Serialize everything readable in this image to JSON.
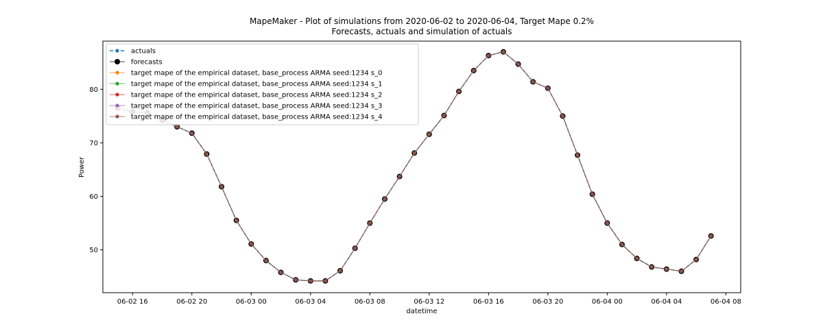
{
  "chart_data": {
    "type": "line",
    "title": "MapeMaker - Plot of simulations from 2020-06-02 to 2020-06-04, Target Mape 0.2%",
    "subtitle": "Forecasts, actuals and simulation of actuals",
    "xlabel": "datetime",
    "ylabel": "Power",
    "xlim": [
      "2020-06-02 14:00",
      "2020-06-04 09:00"
    ],
    "ylim": [
      42,
      89
    ],
    "x_tick_labels": [
      "06-02 16",
      "06-02 20",
      "06-03 00",
      "06-03 04",
      "06-03 08",
      "06-03 12",
      "06-03 16",
      "06-03 20",
      "06-04 00",
      "06-04 04",
      "06-04 08"
    ],
    "x_ticks": [
      "2020-06-02 16:00",
      "2020-06-02 20:00",
      "2020-06-03 00:00",
      "2020-06-03 04:00",
      "2020-06-03 08:00",
      "2020-06-03 12:00",
      "2020-06-03 16:00",
      "2020-06-03 20:00",
      "2020-06-04 00:00",
      "2020-06-04 04:00",
      "2020-06-04 08:00"
    ],
    "y_ticks": [
      50,
      60,
      70,
      80
    ],
    "grid": false,
    "legend_position": "upper-left",
    "x": [
      "2020-06-02 15:00",
      "2020-06-02 16:00",
      "2020-06-02 17:00",
      "2020-06-02 18:00",
      "2020-06-02 19:00",
      "2020-06-02 20:00",
      "2020-06-02 21:00",
      "2020-06-02 22:00",
      "2020-06-02 23:00",
      "2020-06-03 00:00",
      "2020-06-03 01:00",
      "2020-06-03 02:00",
      "2020-06-03 03:00",
      "2020-06-03 04:00",
      "2020-06-03 05:00",
      "2020-06-03 06:00",
      "2020-06-03 07:00",
      "2020-06-03 08:00",
      "2020-06-03 09:00",
      "2020-06-03 10:00",
      "2020-06-03 11:00",
      "2020-06-03 12:00",
      "2020-06-03 13:00",
      "2020-06-03 14:00",
      "2020-06-03 15:00",
      "2020-06-03 16:00",
      "2020-06-03 17:00",
      "2020-06-03 18:00",
      "2020-06-03 19:00",
      "2020-06-03 20:00",
      "2020-06-03 21:00",
      "2020-06-03 22:00",
      "2020-06-03 23:00",
      "2020-06-04 00:00",
      "2020-06-04 01:00",
      "2020-06-04 02:00",
      "2020-06-04 03:00",
      "2020-06-04 04:00",
      "2020-06-04 05:00",
      "2020-06-04 06:00",
      "2020-06-04 07:00"
    ],
    "series": [
      {
        "name": "actuals",
        "color": "#1f77b4",
        "style": "dashed",
        "marker": "small",
        "values": [
          76.5,
          75.8,
          75.6,
          74.2,
          73.0,
          71.8,
          67.9,
          61.8,
          55.5,
          51.1,
          48.0,
          45.8,
          44.4,
          44.2,
          44.2,
          46.1,
          50.3,
          55.0,
          59.5,
          63.7,
          68.1,
          71.6,
          75.1,
          79.6,
          83.5,
          86.3,
          87.0,
          84.7,
          81.4,
          80.2,
          75.0,
          67.7,
          60.4,
          55.0,
          51.0,
          48.4,
          46.8,
          46.4,
          46.0,
          48.2,
          52.6
        ]
      },
      {
        "name": "forecasts",
        "color": "#000000",
        "style": "solid",
        "marker": "large",
        "values": [
          76.5,
          75.8,
          75.6,
          74.2,
          73.0,
          71.8,
          67.9,
          61.8,
          55.5,
          51.1,
          48.0,
          45.8,
          44.4,
          44.2,
          44.2,
          46.1,
          50.3,
          55.0,
          59.5,
          63.7,
          68.1,
          71.6,
          75.1,
          79.6,
          83.5,
          86.3,
          87.0,
          84.7,
          81.4,
          80.2,
          75.0,
          67.7,
          60.4,
          55.0,
          51.0,
          48.4,
          46.8,
          46.4,
          46.0,
          48.2,
          52.6
        ]
      },
      {
        "name": "target mape  of the empirical dataset, base_process ARMA  seed:1234 s_0",
        "color": "#ff7f0e",
        "style": "solid",
        "marker": "small",
        "values": [
          76.5,
          75.8,
          75.6,
          74.2,
          73.0,
          71.8,
          67.9,
          61.8,
          55.5,
          51.1,
          48.0,
          45.8,
          44.4,
          44.2,
          44.2,
          46.1,
          50.3,
          55.0,
          59.5,
          63.7,
          68.1,
          71.6,
          75.1,
          79.6,
          83.5,
          86.3,
          87.0,
          84.7,
          81.4,
          80.2,
          75.0,
          67.7,
          60.4,
          55.0,
          51.0,
          48.4,
          46.8,
          46.4,
          46.0,
          48.2,
          52.6
        ]
      },
      {
        "name": "target mape  of the empirical dataset, base_process ARMA  seed:1234 s_1",
        "color": "#2ca02c",
        "style": "solid",
        "marker": "small",
        "values": [
          76.5,
          75.8,
          75.6,
          74.2,
          73.0,
          71.8,
          67.9,
          61.8,
          55.5,
          51.1,
          48.0,
          45.8,
          44.4,
          44.2,
          44.2,
          46.1,
          50.3,
          55.0,
          59.5,
          63.7,
          68.1,
          71.6,
          75.1,
          79.6,
          83.5,
          86.3,
          87.0,
          84.7,
          81.4,
          80.2,
          75.0,
          67.7,
          60.4,
          55.0,
          51.0,
          48.4,
          46.8,
          46.4,
          46.0,
          48.2,
          52.6
        ]
      },
      {
        "name": "target mape  of the empirical dataset, base_process ARMA  seed:1234 s_2",
        "color": "#d62728",
        "style": "solid",
        "marker": "small",
        "values": [
          76.5,
          75.8,
          75.6,
          74.2,
          73.0,
          71.8,
          67.9,
          61.8,
          55.5,
          51.1,
          48.0,
          45.8,
          44.4,
          44.2,
          44.2,
          46.1,
          50.3,
          55.0,
          59.5,
          63.7,
          68.1,
          71.6,
          75.1,
          79.6,
          83.5,
          86.3,
          87.0,
          84.7,
          81.4,
          80.2,
          75.0,
          67.7,
          60.4,
          55.0,
          51.0,
          48.4,
          46.8,
          46.4,
          46.0,
          48.2,
          52.6
        ]
      },
      {
        "name": "target mape  of the empirical dataset, base_process ARMA  seed:1234 s_3",
        "color": "#9467bd",
        "style": "solid",
        "marker": "small",
        "values": [
          76.5,
          75.8,
          75.6,
          74.2,
          73.0,
          71.8,
          67.9,
          61.8,
          55.5,
          51.1,
          48.0,
          45.8,
          44.4,
          44.2,
          44.2,
          46.1,
          50.3,
          55.0,
          59.5,
          63.7,
          68.1,
          71.6,
          75.1,
          79.6,
          83.5,
          86.3,
          87.0,
          84.7,
          81.4,
          80.2,
          75.0,
          67.7,
          60.4,
          55.0,
          51.0,
          48.4,
          46.8,
          46.4,
          46.0,
          48.2,
          52.6
        ]
      },
      {
        "name": "target mape  of the empirical dataset, base_process ARMA  seed:1234 s_4",
        "color": "#8c564b",
        "style": "solid",
        "marker": "small",
        "values": [
          76.5,
          75.8,
          75.6,
          74.2,
          73.0,
          71.8,
          67.9,
          61.8,
          55.5,
          51.1,
          48.0,
          45.8,
          44.4,
          44.2,
          44.2,
          46.1,
          50.3,
          55.0,
          59.5,
          63.7,
          68.1,
          71.6,
          75.1,
          79.6,
          83.5,
          86.3,
          87.0,
          84.7,
          81.4,
          80.2,
          75.0,
          67.7,
          60.4,
          55.0,
          51.0,
          48.4,
          46.8,
          46.4,
          46.0,
          48.2,
          52.6
        ]
      }
    ]
  }
}
